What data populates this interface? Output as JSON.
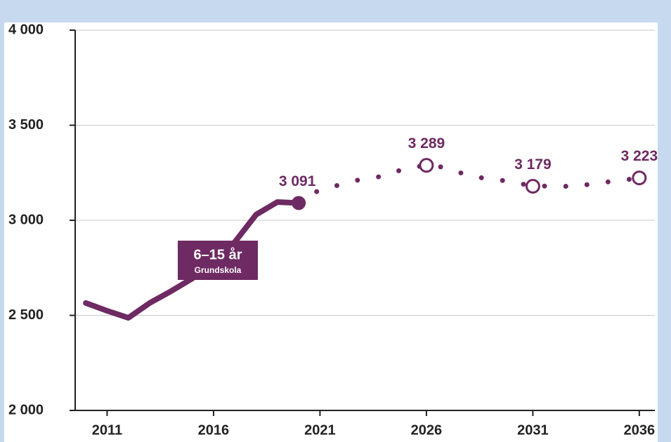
{
  "chart_data": {
    "type": "line",
    "x": [
      2010,
      2011,
      2012,
      2013,
      2014,
      2015,
      2016,
      2017,
      2018,
      2019,
      2020,
      2021,
      2022,
      2023,
      2024,
      2025,
      2026,
      2027,
      2028,
      2029,
      2030,
      2031,
      2032,
      2033,
      2034,
      2035,
      2036
    ],
    "series": [
      {
        "color": "#6e2a62",
        "style": "solid",
        "marker": "filled",
        "values": [
          2565,
          2524,
          2487,
          2565,
          2627,
          2694,
          2775,
          2886,
          3030,
          3096,
          3091,
          null,
          null,
          null,
          null,
          null,
          null,
          null,
          null,
          null,
          null,
          null,
          null,
          null,
          null,
          null,
          null
        ],
        "value_labels": [
          null,
          null,
          null,
          null,
          null,
          null,
          null,
          null,
          null,
          null,
          "3 091",
          null,
          null,
          null,
          null,
          null,
          null,
          null,
          null,
          null,
          null,
          null,
          null,
          null,
          null,
          null,
          null
        ]
      },
      {
        "color": "#6e2a62",
        "style": "dotted",
        "marker": "open",
        "values": [
          null,
          null,
          null,
          null,
          null,
          null,
          null,
          null,
          null,
          null,
          3091,
          3162,
          3188,
          3218,
          3232,
          3273,
          3289,
          3277,
          3232,
          3218,
          3203,
          3179,
          3181,
          3177,
          3196,
          3207,
          3223
        ],
        "value_labels": [
          null,
          null,
          null,
          null,
          null,
          null,
          null,
          null,
          null,
          null,
          null,
          null,
          null,
          null,
          null,
          null,
          "3 289",
          null,
          null,
          null,
          null,
          "3 179",
          null,
          null,
          null,
          null,
          "3 223"
        ]
      }
    ],
    "annotations": [
      {
        "text": "6–15 år",
        "subtext": "Grundskola"
      }
    ],
    "xlim": [
      2009.5,
      2036.73
    ],
    "xticks": [
      2011,
      2016,
      2021,
      2026,
      2031,
      2036
    ],
    "ylim": [
      2000,
      4000
    ],
    "yticks": [
      {
        "value": 2000,
        "label": "2 000"
      },
      {
        "value": 2500,
        "label": "2 500"
      },
      {
        "value": 3000,
        "label": "3 000"
      },
      {
        "value": 3500,
        "label": "3 500"
      },
      {
        "value": 4000,
        "label": "4 000"
      }
    ],
    "grid": true
  }
}
